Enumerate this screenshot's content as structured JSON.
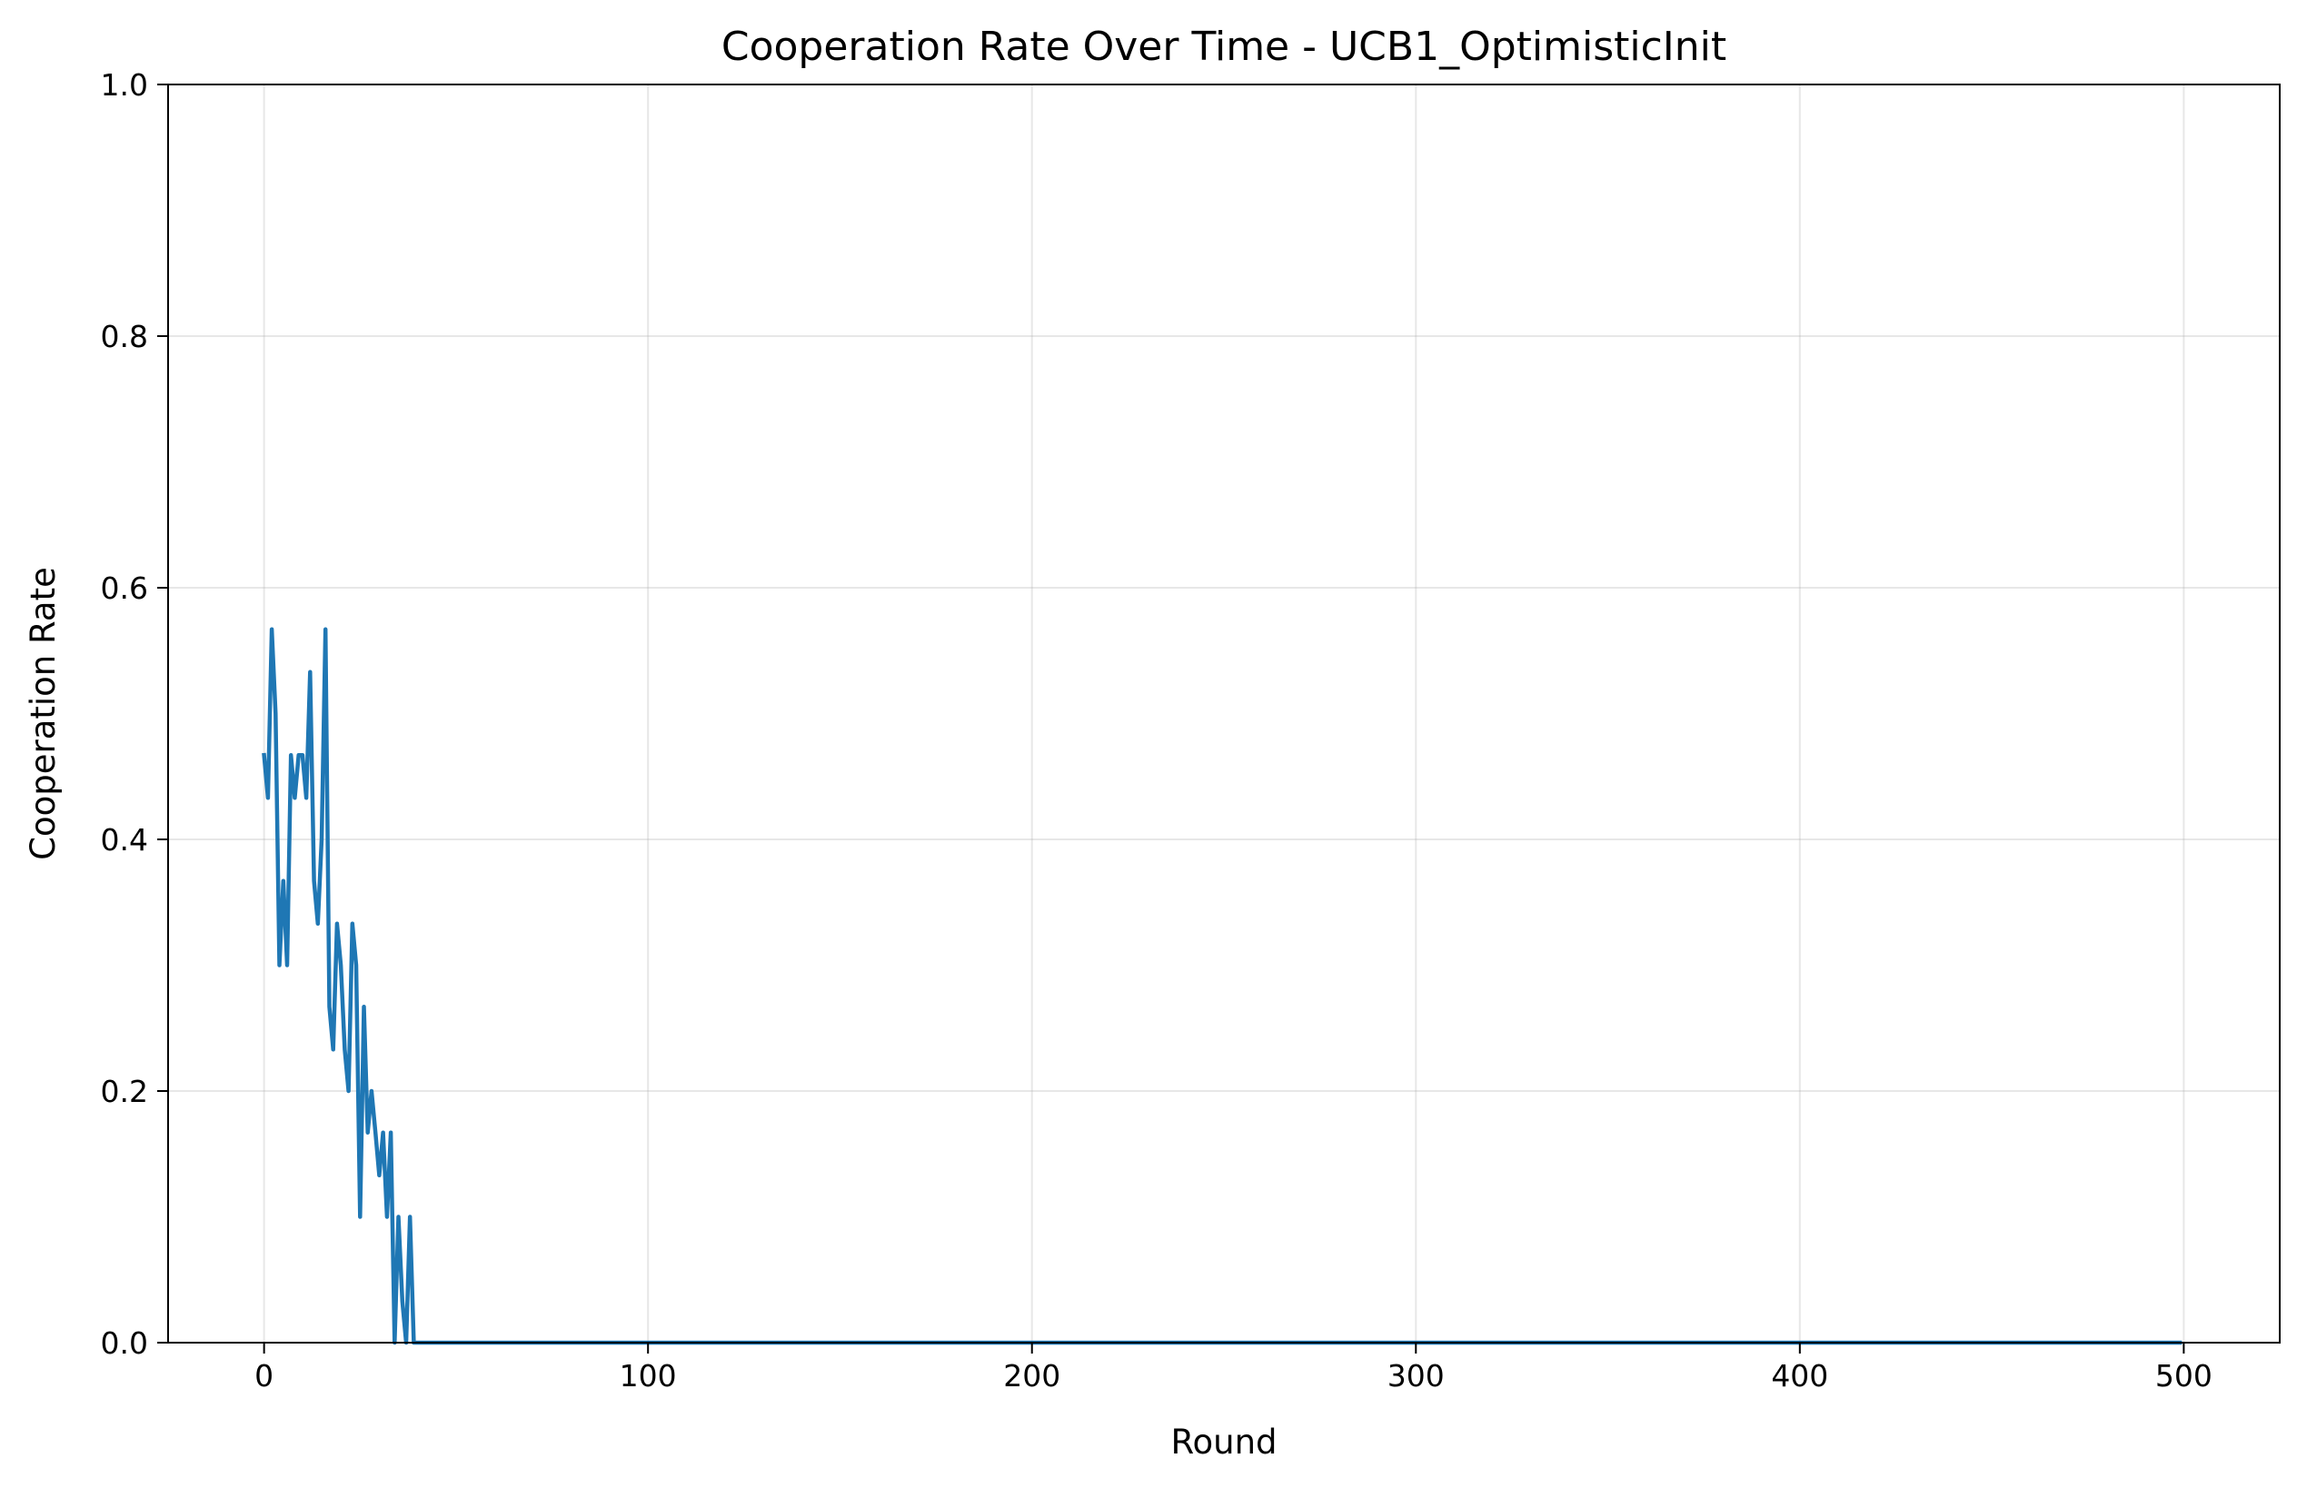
{
  "chart_data": {
    "type": "line",
    "title": "Cooperation Rate Over Time - UCB1_OptimisticInit",
    "xlabel": "Round",
    "ylabel": "Cooperation Rate",
    "xlim": [
      -25,
      525
    ],
    "ylim": [
      0.0,
      1.0
    ],
    "xticks": [
      0,
      100,
      200,
      300,
      400,
      500
    ],
    "xtick_labels": [
      "0",
      "100",
      "200",
      "300",
      "400",
      "500"
    ],
    "yticks": [
      0.0,
      0.2,
      0.4,
      0.6,
      0.8,
      1.0
    ],
    "ytick_labels": [
      "0.0",
      "0.2",
      "0.4",
      "0.6",
      "0.8",
      "1.0"
    ],
    "grid": true,
    "series": [
      {
        "color": "#1f77b4",
        "x": [
          0,
          1,
          2,
          3,
          4,
          5,
          6,
          7,
          8,
          9,
          10,
          11,
          12,
          13,
          14,
          15,
          16,
          17,
          18,
          19,
          20,
          21,
          22,
          23,
          24,
          25,
          26,
          27,
          28,
          29,
          30,
          31,
          32,
          33,
          34,
          35,
          36,
          37,
          38,
          39,
          40,
          60,
          100,
          200,
          300,
          400,
          499
        ],
        "y": [
          0.467,
          0.433,
          0.567,
          0.5,
          0.3,
          0.367,
          0.3,
          0.467,
          0.433,
          0.467,
          0.467,
          0.433,
          0.533,
          0.367,
          0.333,
          0.4,
          0.567,
          0.267,
          0.233,
          0.333,
          0.3,
          0.233,
          0.2,
          0.333,
          0.3,
          0.1,
          0.267,
          0.167,
          0.2,
          0.167,
          0.133,
          0.167,
          0.1,
          0.167,
          0.0,
          0.1,
          0.033,
          0.0,
          0.1,
          0.0,
          0.0,
          0.0,
          0.0,
          0.0,
          0.0,
          0.0,
          0.0
        ]
      }
    ]
  }
}
